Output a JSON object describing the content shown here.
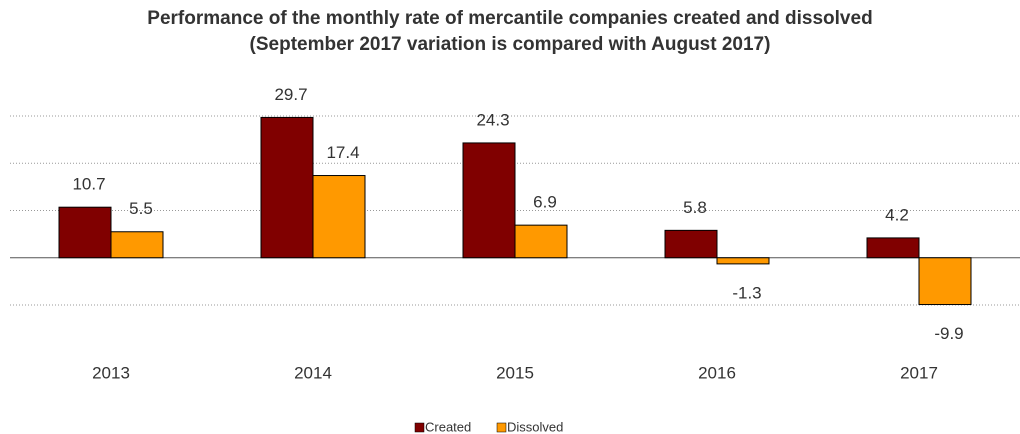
{
  "chart_data": {
    "type": "bar",
    "title": "Performance of the monthly rate of mercantile companies created and dissolved (September 2017 variation is compared with August 2017)",
    "categories": [
      "2013",
      "2014",
      "2015",
      "2016",
      "2017"
    ],
    "series": [
      {
        "name": "Created",
        "color": "#800000",
        "values": [
          10.7,
          29.7,
          24.3,
          5.8,
          4.2
        ]
      },
      {
        "name": "Dissolved",
        "color": "#ff9900",
        "values": [
          5.5,
          17.4,
          6.9,
          -1.3,
          -9.9
        ]
      }
    ],
    "ylim": [
      -10,
      30
    ],
    "yticks": [
      -10,
      0,
      10,
      20,
      30
    ],
    "grid": true,
    "legend": "bottom"
  }
}
